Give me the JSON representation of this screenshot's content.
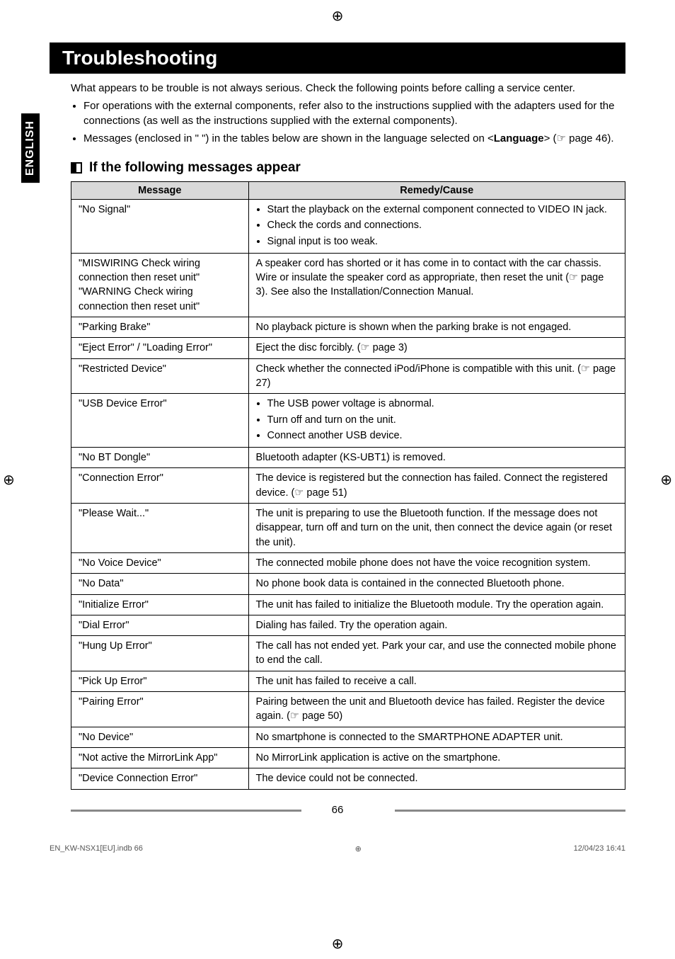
{
  "meta": {
    "language_tab": "ENGLISH",
    "reg_mark": "⊕"
  },
  "title": "Troubleshooting",
  "intro_lead": "What appears to be trouble is not always serious. Check the following points before calling a service center.",
  "intro_bullets": [
    "For operations with the external components, refer also to the instructions supplied with the adapters used for the connections (as well as the instructions supplied with the external components).",
    "Messages (enclosed in \" \") in the tables below are shown in the language selected on <Language> (☞ page 46)."
  ],
  "subhead": "If the following messages appear",
  "table": {
    "columns": [
      "Message",
      "Remedy/Cause"
    ],
    "rows": [
      {
        "message": "\"No Signal\"",
        "remedy_list": [
          "Start the playback on the external component connected to VIDEO IN jack.",
          "Check the cords and connections.",
          "Signal input is too weak."
        ]
      },
      {
        "message_lines": [
          "\"MISWIRING Check wiring connection then reset unit\"",
          "\"WARNING Check wiring connection then reset unit\""
        ],
        "remedy": "A speaker cord has shorted or it has come in to contact with the car chassis. Wire or insulate the speaker cord as appropriate, then reset the unit (☞ page 3). See also the Installation/Connection Manual."
      },
      {
        "message": "\"Parking Brake\"",
        "remedy": "No playback picture is shown when the parking brake is not engaged."
      },
      {
        "message": "\"Eject Error\" / \"Loading Error\"",
        "remedy": "Eject the disc forcibly. (☞ page 3)"
      },
      {
        "message": "\"Restricted Device\"",
        "remedy": "Check whether the connected iPod/iPhone is compatible with this unit. (☞ page 27)"
      },
      {
        "message": "\"USB Device Error\"",
        "remedy_list": [
          "The USB power voltage is abnormal.",
          "Turn off and turn on the unit.",
          "Connect another USB device."
        ]
      },
      {
        "message": "\"No BT Dongle\"",
        "remedy": "Bluetooth adapter (KS-UBT1) is removed."
      },
      {
        "message": "\"Connection Error\"",
        "remedy": "The device is registered but the connection has failed. Connect the registered device. (☞ page 51)"
      },
      {
        "message": "\"Please Wait...\"",
        "remedy": "The unit is preparing to use the Bluetooth function. If the message does not disappear, turn off and turn on the unit, then connect the device again (or reset the unit)."
      },
      {
        "message": "\"No Voice Device\"",
        "remedy": "The connected mobile phone does not have the voice recognition system."
      },
      {
        "message": "\"No Data\"",
        "remedy": "No phone book data is contained in the connected Bluetooth phone."
      },
      {
        "message": "\"Initialize Error\"",
        "remedy": "The unit has failed to initialize the Bluetooth module. Try the operation again."
      },
      {
        "message": "\"Dial Error\"",
        "remedy": "Dialing has failed. Try the operation again."
      },
      {
        "message": "\"Hung Up Error\"",
        "remedy": "The call has not ended yet. Park your car, and use the connected mobile phone to end the call."
      },
      {
        "message": "\"Pick Up Error\"",
        "remedy": "The unit has failed to receive a call."
      },
      {
        "message": "\"Pairing Error\"",
        "remedy": "Pairing between the unit and Bluetooth device has failed. Register the device again. (☞ page 50)"
      },
      {
        "message": "\"No Device\"",
        "remedy": "No smartphone is connected to the SMARTPHONE ADAPTER unit."
      },
      {
        "message": "\"Not active the MirrorLink App\"",
        "remedy": "No MirrorLink application is active on the smartphone."
      },
      {
        "message": "\"Device Connection Error\"",
        "remedy": "The device could not be connected."
      }
    ]
  },
  "page_number": "66",
  "footer": {
    "left": "EN_KW-NSX1[EU].indb   66",
    "right": "12/04/23   16:41"
  }
}
